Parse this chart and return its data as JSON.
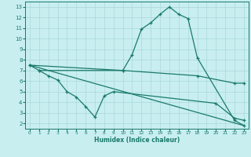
{
  "line1_x": [
    0,
    1,
    10,
    11,
    12,
    13,
    14,
    15,
    16,
    17,
    18,
    22,
    23
  ],
  "line1_y": [
    7.5,
    7.0,
    7.0,
    8.5,
    10.9,
    11.5,
    12.3,
    13.0,
    12.3,
    11.9,
    8.2,
    2.3,
    1.8
  ],
  "line2_x": [
    0,
    10,
    18,
    22,
    23
  ],
  "line2_y": [
    7.5,
    7.0,
    6.5,
    5.8,
    5.8
  ],
  "line3_x": [
    1,
    2,
    3,
    4,
    5,
    6,
    7,
    8,
    9,
    20,
    22,
    23
  ],
  "line3_y": [
    7.0,
    6.5,
    6.1,
    5.0,
    4.5,
    3.6,
    2.6,
    4.6,
    5.0,
    3.9,
    2.5,
    2.3
  ],
  "line4_x": [
    0,
    23
  ],
  "line4_y": [
    7.5,
    1.8
  ],
  "color": "#1a7a6a",
  "bg_color": "#c8eef0",
  "grid_color": "#aad8da",
  "xlabel": "Humidex (Indice chaleur)",
  "xlim": [
    -0.5,
    23.5
  ],
  "ylim": [
    1.5,
    13.5
  ],
  "yticks": [
    2,
    3,
    4,
    5,
    6,
    7,
    8,
    9,
    10,
    11,
    12,
    13
  ],
  "xticks": [
    0,
    1,
    2,
    3,
    4,
    5,
    6,
    7,
    8,
    9,
    10,
    11,
    12,
    13,
    14,
    15,
    16,
    17,
    18,
    19,
    20,
    21,
    22,
    23
  ]
}
